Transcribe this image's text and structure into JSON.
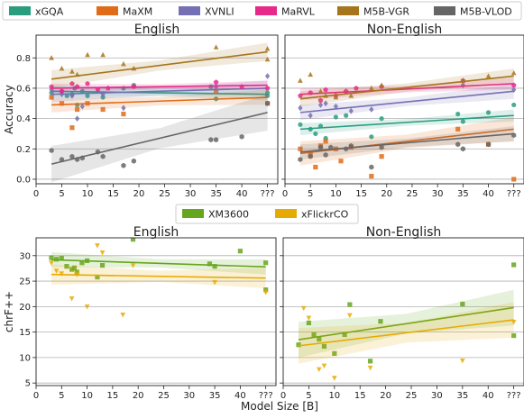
{
  "chart_data": [
    {
      "type": "scatter",
      "panel": "top-left",
      "title": "English",
      "xlabel": "",
      "ylabel": "Accuracy",
      "xlim": [
        0,
        47
      ],
      "ylim": [
        -0.03,
        0.95
      ],
      "x_ticks": [
        0,
        5,
        10,
        15,
        20,
        25,
        30,
        35,
        40,
        45
      ],
      "x_tick_labels": [
        "0",
        "5",
        "10",
        "15",
        "20",
        "25",
        "30",
        "35",
        "40",
        "???"
      ],
      "y_ticks": [
        0.0,
        0.2,
        0.4,
        0.6,
        0.8
      ],
      "y_tick_labels": [
        "0.0",
        "0.2",
        "0.4",
        "0.6",
        "0.8"
      ],
      "grid": "horizontal",
      "series": [
        {
          "name": "xGQA",
          "color": "#2a9d7f",
          "marker": "circle",
          "x": [
            3,
            5,
            6,
            7,
            7.5,
            8,
            9,
            10,
            13,
            17,
            19,
            34,
            35,
            45,
            45
          ],
          "y": [
            0.57,
            0.58,
            0.55,
            0.56,
            0.6,
            0.49,
            0.58,
            0.55,
            0.54,
            0.6,
            0.62,
            0.61,
            0.53,
            0.57,
            0.55
          ],
          "fit": [
            0.58,
            0.56
          ],
          "band": 0.04
        },
        {
          "name": "MaXM",
          "color": "#e06c1a",
          "marker": "square",
          "x": [
            3,
            5,
            7,
            8,
            10,
            13,
            17,
            35,
            45
          ],
          "y": [
            0.54,
            0.5,
            0.34,
            0.46,
            0.5,
            0.46,
            0.43,
            0.58,
            0.5
          ],
          "fit": [
            0.49,
            0.54
          ],
          "band": 0.05
        },
        {
          "name": "XVNLI",
          "color": "#7570b3",
          "marker": "diamond",
          "x": [
            3,
            5,
            7,
            8,
            9,
            13,
            17,
            35,
            45
          ],
          "y": [
            0.59,
            0.56,
            0.55,
            0.4,
            0.48,
            0.56,
            0.47,
            0.61,
            0.68
          ],
          "fit": [
            0.56,
            0.6
          ],
          "band": 0.05
        },
        {
          "name": "MaRVL",
          "color": "#e7298a",
          "marker": "pentagon",
          "x": [
            3,
            5,
            7,
            8,
            10,
            12,
            14,
            19,
            35,
            40,
            45
          ],
          "y": [
            0.61,
            0.58,
            0.63,
            0.61,
            0.63,
            0.59,
            0.6,
            0.61,
            0.64,
            0.61,
            0.6
          ],
          "fit": [
            0.6,
            0.62
          ],
          "band": 0.03
        },
        {
          "name": "M5B-VGR",
          "color": "#a6761d",
          "marker": "triangle",
          "x": [
            3,
            5,
            7,
            8,
            10,
            13,
            17,
            19,
            35,
            45,
            45
          ],
          "y": [
            0.8,
            0.73,
            0.71,
            0.69,
            0.82,
            0.82,
            0.76,
            0.73,
            0.87,
            0.86,
            0.79
          ],
          "fit": [
            0.66,
            0.84
          ],
          "band": 0.06
        },
        {
          "name": "M5B-VLOD",
          "color": "#666666",
          "marker": "hexagon",
          "x": [
            3,
            5,
            7,
            8,
            9,
            12,
            13,
            17,
            19,
            34,
            35,
            40,
            45
          ],
          "y": [
            0.19,
            0.13,
            0.15,
            0.13,
            0.14,
            0.18,
            0.15,
            0.09,
            0.12,
            0.26,
            0.26,
            0.28,
            0.5
          ],
          "fit": [
            0.1,
            0.44
          ],
          "band": 0.12
        }
      ]
    },
    {
      "type": "scatter",
      "panel": "top-right",
      "title": "Non-English",
      "xlabel": "",
      "ylabel": "",
      "xlim": [
        0,
        47
      ],
      "ylim": [
        -0.03,
        0.95
      ],
      "x_ticks": [
        0,
        5,
        10,
        15,
        20,
        25,
        30,
        35,
        40,
        45
      ],
      "x_tick_labels": [
        "0",
        "5",
        "10",
        "15",
        "20",
        "25",
        "30",
        "35",
        "40",
        "???"
      ],
      "y_ticks": [
        0.0,
        0.2,
        0.4,
        0.6,
        0.8
      ],
      "grid": "horizontal",
      "series": [
        {
          "name": "xGQA",
          "color": "#2a9d7f",
          "marker": "circle",
          "x": [
            3,
            5,
            6,
            7,
            8,
            10,
            12,
            17,
            19,
            34,
            35,
            40,
            45
          ],
          "y": [
            0.36,
            0.33,
            0.3,
            0.35,
            0.27,
            0.41,
            0.42,
            0.28,
            0.4,
            0.43,
            0.38,
            0.44,
            0.49
          ],
          "fit": [
            0.33,
            0.42
          ],
          "band": 0.04
        },
        {
          "name": "MaXM",
          "color": "#e06c1a",
          "marker": "square",
          "x": [
            3,
            5,
            6,
            7,
            8,
            10,
            11,
            13,
            17,
            19,
            34,
            40,
            45
          ],
          "y": [
            0.2,
            0.16,
            0.08,
            0.22,
            0.25,
            0.2,
            0.12,
            0.21,
            0.02,
            0.15,
            0.33,
            0.23,
            0.0
          ],
          "fit": [
            0.17,
            0.33
          ],
          "band": 0.08
        },
        {
          "name": "XVNLI",
          "color": "#7570b3",
          "marker": "diamond",
          "x": [
            3,
            5,
            7,
            8,
            10,
            13,
            17,
            35,
            45
          ],
          "y": [
            0.47,
            0.42,
            0.49,
            0.5,
            0.48,
            0.45,
            0.46,
            0.62,
            0.59
          ],
          "fit": [
            0.44,
            0.58
          ],
          "band": 0.05
        },
        {
          "name": "MaRVL",
          "color": "#e7298a",
          "marker": "pentagon",
          "x": [
            3,
            5,
            7,
            8,
            10,
            12,
            14,
            19,
            35,
            45
          ],
          "y": [
            0.55,
            0.57,
            0.52,
            0.59,
            0.55,
            0.58,
            0.6,
            0.61,
            0.65,
            0.62
          ],
          "fit": [
            0.56,
            0.63
          ],
          "band": 0.04
        },
        {
          "name": "M5B-VGR",
          "color": "#a6761d",
          "marker": "triangle",
          "x": [
            3,
            5,
            7,
            8,
            10,
            13,
            17,
            19,
            35,
            40,
            45
          ],
          "y": [
            0.65,
            0.69,
            0.58,
            0.55,
            0.54,
            0.55,
            0.6,
            0.62,
            0.65,
            0.68,
            0.7
          ],
          "fit": [
            0.53,
            0.68
          ],
          "band": 0.05
        },
        {
          "name": "M5B-VLOD",
          "color": "#666666",
          "marker": "hexagon",
          "x": [
            3,
            5,
            7,
            8,
            9,
            12,
            13,
            17,
            19,
            34,
            35,
            40,
            45
          ],
          "y": [
            0.13,
            0.15,
            0.21,
            0.16,
            0.21,
            0.2,
            0.22,
            0.08,
            0.21,
            0.23,
            0.2,
            0.23,
            0.29
          ],
          "fit": [
            0.18,
            0.3
          ],
          "band": 0.05
        }
      ]
    },
    {
      "type": "scatter",
      "panel": "bottom-left",
      "title": "English",
      "xlabel": "",
      "ylabel": "chrF++",
      "xlim": [
        0,
        47
      ],
      "ylim": [
        4.5,
        33.5
      ],
      "x_ticks": [
        0,
        5,
        10,
        15,
        20,
        25,
        30,
        35,
        40,
        45
      ],
      "x_tick_labels": [
        "0",
        "5",
        "10",
        "15",
        "20",
        "25",
        "30",
        "35",
        "40",
        "???"
      ],
      "y_ticks": [
        5,
        10,
        15,
        20,
        25,
        30
      ],
      "y_tick_labels": [
        "5",
        "10",
        "15",
        "20",
        "25",
        "30"
      ],
      "grid": "horizontal",
      "series": [
        {
          "name": "XM3600",
          "color": "#66a61e",
          "marker": "square",
          "x": [
            3,
            4,
            5,
            6,
            7,
            7.5,
            8,
            9,
            10,
            12,
            13,
            19,
            34,
            35,
            40,
            45,
            45
          ],
          "y": [
            29.6,
            29.3,
            29.5,
            27.9,
            27.3,
            27.6,
            26.8,
            28.6,
            29,
            25.8,
            28.1,
            33.2,
            28.4,
            27.9,
            30.9,
            28.6,
            23.3
          ],
          "fit": [
            29.2,
            27.8
          ],
          "band": 1.5
        },
        {
          "name": "xFlickrCO",
          "color": "#e6ab02",
          "marker": "triangle-down",
          "x": [
            3,
            4,
            5,
            7,
            8,
            10,
            12,
            13,
            17,
            19,
            35,
            45
          ],
          "y": [
            28.6,
            27,
            26.5,
            21.6,
            26.3,
            20,
            32,
            30.6,
            18.4,
            28.1,
            24.8,
            22.8
          ],
          "fit": [
            26.3,
            25.6
          ],
          "band": 2.0
        }
      ]
    },
    {
      "type": "scatter",
      "panel": "bottom-right",
      "title": "Non-English",
      "xlabel": "",
      "ylabel": "",
      "xlim": [
        0,
        47
      ],
      "ylim": [
        4.5,
        33.5
      ],
      "x_ticks": [
        0,
        5,
        10,
        15,
        20,
        25,
        30,
        35,
        40,
        45
      ],
      "x_tick_labels": [
        "0",
        "5",
        "10",
        "15",
        "20",
        "25",
        "30",
        "35",
        "40",
        "???"
      ],
      "y_ticks": [
        5,
        10,
        15,
        20,
        25,
        30
      ],
      "grid": "horizontal",
      "series": [
        {
          "name": "XM3600",
          "color": "#66a61e",
          "marker": "square",
          "x": [
            3,
            5,
            6,
            7,
            8,
            10,
            12,
            13,
            17,
            19,
            35,
            45,
            45
          ],
          "y": [
            12.5,
            16.8,
            14.5,
            13.6,
            12.2,
            10.8,
            14.5,
            20.4,
            9.3,
            17.1,
            20.5,
            28.2,
            14.3
          ],
          "fit": [
            13.5,
            19.8
          ],
          "band": 3.5
        },
        {
          "name": "xFlickrCO",
          "color": "#e6ab02",
          "marker": "triangle-down",
          "x": [
            4,
            5,
            7,
            8,
            10,
            13,
            17,
            35,
            45
          ],
          "y": [
            19.7,
            17.8,
            7.7,
            8.4,
            6,
            18.3,
            8,
            9.4,
            17
          ],
          "fit": [
            12.3,
            17.4
          ],
          "band": 3.5
        }
      ]
    }
  ],
  "legend_top": [
    "xGQA",
    "MaXM",
    "XVNLI",
    "MaRVL",
    "M5B-VGR",
    "M5B-VLOD"
  ],
  "legend_bottom": [
    "XM3600",
    "xFlickrCO"
  ],
  "shared_xlabel": "Model Size [B]"
}
